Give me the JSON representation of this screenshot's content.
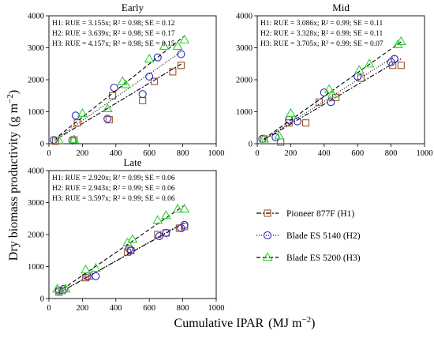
{
  "figure": {
    "ylabel_text": "Dry biomass productivity",
    "ylabel_unit": "(g m",
    "ylabel_exp": "−2",
    "ylabel_close": ")",
    "xlabel_text": "Cumulative IPAR",
    "xlabel_unit": "(MJ m",
    "xlabel_exp": "−2",
    "xlabel_close": ")"
  },
  "legend": [
    {
      "label": "Pioneer 877F (H1)",
      "color": "#a0522d",
      "marker": "square",
      "dash": "6,2,2,2"
    },
    {
      "label": "Blade ES 5140 (H2)",
      "color": "#2b2bbf",
      "marker": "circle",
      "dash": "1,2"
    },
    {
      "label": "Blade ES 5200 (H3)",
      "color": "#2fd12f",
      "marker": "triangle",
      "dash": "5,3"
    }
  ],
  "chart_data": [
    {
      "type": "scatter",
      "title": "Early",
      "xlim": [
        0,
        1000
      ],
      "ylim": [
        0,
        4000
      ],
      "xticks": [
        0,
        200,
        400,
        600,
        800,
        1000
      ],
      "yticks": [
        0,
        1000,
        2000,
        3000,
        4000
      ],
      "annotations": [
        "H1: RUE = 3.155x; R² = 0.98; SE = 0.12",
        "H2: RUE = 3.639x; R² = 0.98; SE = 0.17",
        "H3: RUE = 4.157x; R² = 0.98; SE = 0.15"
      ],
      "series": [
        {
          "name": "Pioneer 877F (H1)",
          "slope": 3.155,
          "x": [
            40,
            150,
            170,
            360,
            380,
            560,
            630,
            740,
            790
          ],
          "y": [
            80,
            120,
            650,
            750,
            1500,
            1350,
            1950,
            2250,
            2450
          ]
        },
        {
          "name": "Blade ES 5140 (H2)",
          "slope": 3.639,
          "x": [
            30,
            140,
            160,
            350,
            390,
            560,
            600,
            650,
            790
          ],
          "y": [
            120,
            100,
            880,
            780,
            1750,
            1550,
            2100,
            2700,
            2800
          ]
        },
        {
          "name": "Blade ES 5200 (H3)",
          "slope": 4.157,
          "x": [
            60,
            150,
            200,
            350,
            440,
            460,
            600,
            690,
            770,
            810
          ],
          "y": [
            110,
            130,
            950,
            1100,
            1950,
            1850,
            2650,
            3050,
            3050,
            3250
          ]
        }
      ]
    },
    {
      "type": "scatter",
      "title": "Mid",
      "xlim": [
        0,
        1000
      ],
      "ylim": [
        0,
        4000
      ],
      "xticks": [
        0,
        200,
        400,
        600,
        800,
        1000
      ],
      "yticks": [
        0,
        1000,
        2000,
        3000,
        4000
      ],
      "annotations": [
        "H1: RUE = 3.086x; R² = 0.99; SE = 0.11",
        "H2: RUE = 3.328x; R² = 0.99; SE = 0.11",
        "H3: RUE = 3.705x; R² = 0.99; SE = 0.07"
      ],
      "series": [
        {
          "name": "Pioneer 877F (H1)",
          "slope": 3.086,
          "x": [
            40,
            140,
            190,
            290,
            370,
            470,
            620,
            810,
            860
          ],
          "y": [
            150,
            50,
            650,
            650,
            1300,
            1450,
            2050,
            2450,
            2450
          ]
        },
        {
          "name": "Blade ES 5140 (H2)",
          "slope": 3.328,
          "x": [
            30,
            110,
            190,
            240,
            400,
            440,
            600,
            800,
            820
          ],
          "y": [
            150,
            200,
            750,
            700,
            1600,
            1300,
            2100,
            2550,
            2650
          ]
        },
        {
          "name": "Blade ES 5200 (H3)",
          "slope": 3.705,
          "x": [
            40,
            130,
            200,
            430,
            450,
            610,
            670,
            840,
            860
          ],
          "y": [
            150,
            250,
            950,
            1700,
            1550,
            2300,
            2500,
            3100,
            3200
          ]
        }
      ]
    },
    {
      "type": "scatter",
      "title": "Late",
      "xlim": [
        0,
        1000
      ],
      "ylim": [
        0,
        4000
      ],
      "xticks": [
        0,
        200,
        400,
        600,
        800,
        1000
      ],
      "yticks": [
        0,
        1000,
        2000,
        3000,
        4000
      ],
      "annotations": [
        "H1: RUE = 2.920x; R² = 0.99; SE = 0.06",
        "H2: RUE = 2.943x; R² = 0.99; SE = 0.06",
        "H3: RUE = 3.597x; R² = 0.99; SE = 0.06"
      ],
      "series": [
        {
          "name": "Pioneer 877F (H1)",
          "slope": 2.92,
          "x": [
            60,
            80,
            220,
            240,
            470,
            490,
            650,
            700,
            780,
            810
          ],
          "y": [
            200,
            250,
            650,
            700,
            1450,
            1500,
            2000,
            2050,
            2200,
            2250
          ]
        },
        {
          "name": "Blade ES 5140 (H2)",
          "slope": 2.943,
          "x": [
            60,
            90,
            230,
            280,
            480,
            490,
            660,
            700,
            790,
            810
          ],
          "y": [
            250,
            300,
            700,
            700,
            1550,
            1500,
            1950,
            2050,
            2200,
            2300
          ]
        },
        {
          "name": "Blade ES 5200 (H3)",
          "slope": 3.597,
          "x": [
            50,
            100,
            220,
            280,
            470,
            500,
            650,
            700,
            770,
            810
          ],
          "y": [
            300,
            300,
            900,
            950,
            1750,
            1850,
            2450,
            2600,
            2800,
            2800
          ]
        }
      ]
    }
  ]
}
